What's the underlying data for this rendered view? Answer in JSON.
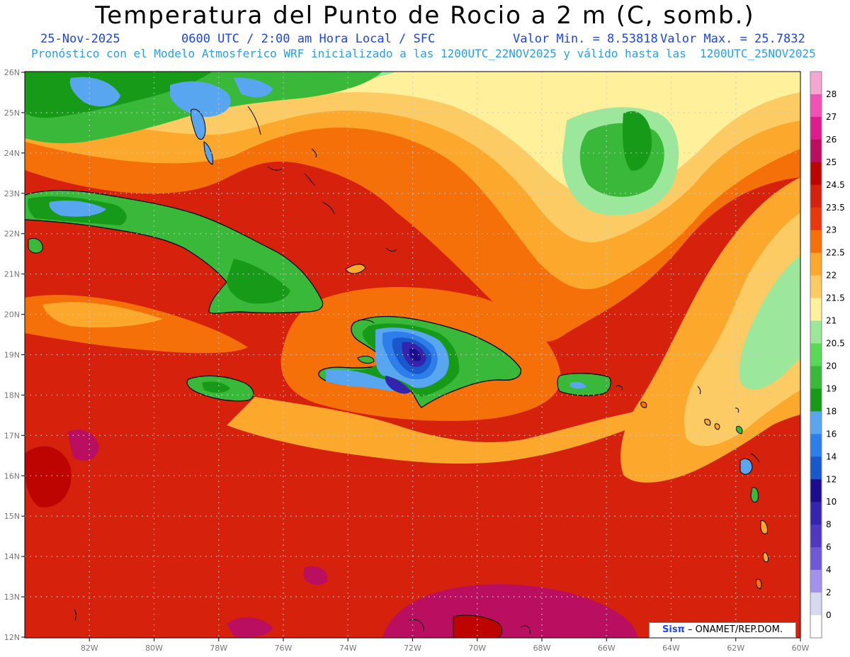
{
  "header": {
    "title": "Temperatura del Punto de Rocio a 2 m (C, somb.)",
    "date": "25-Nov-2025",
    "time": "0600 UTC / 2:00 am Hora Local / SFC",
    "valmin": "Valor Min. = 8.53818",
    "valmax": "Valor Max. = 25.7832",
    "model_line": "Pronóstico con el Modelo Atmosferico WRF inicializado a las 1200UTC_22NOV2025 y válido hasta las  1200UTC_25NOV2025"
  },
  "map": {
    "lat_labels": [
      "26N",
      "25N",
      "24N",
      "23N",
      "22N",
      "21N",
      "20N",
      "19N",
      "18N",
      "17N",
      "16N",
      "15N",
      "14N",
      "13N",
      "12N"
    ],
    "lon_labels": [
      "82W",
      "80W",
      "78W",
      "76W",
      "74W",
      "72W",
      "70W",
      "68W",
      "66W",
      "64W",
      "62W",
      "60W"
    ],
    "colors": {
      "ocean_base": "#d6210d",
      "gridline": "#c8c8c8",
      "coast": "#000000"
    }
  },
  "legend": {
    "levels": [
      "0",
      "2",
      "4",
      "6",
      "8",
      "10",
      "12",
      "14",
      "16",
      "18",
      "19",
      "20",
      "20.5",
      "21",
      "21.5",
      "22",
      "22.5",
      "23",
      "23.5",
      "24.5",
      "25",
      "26",
      "27",
      "28"
    ],
    "colors": [
      "#ffffff",
      "#d8d8f0",
      "#a391ec",
      "#7057d8",
      "#4f37c0",
      "#3424ad",
      "#1c0c8e",
      "#1957cd",
      "#2d7eea",
      "#58a6f0",
      "#179a17",
      "#3ab83a",
      "#57d957",
      "#9be79b",
      "#fff09c",
      "#fdcb63",
      "#fba82c",
      "#f6700a",
      "#e9370e",
      "#d6210d",
      "#bd0400",
      "#ba0f60",
      "#dd1b8c",
      "#f150b4",
      "#f5a6d2"
    ]
  },
  "credit": {
    "logo": "Sisπ",
    "text": " – ONAMET/REP.DOM."
  }
}
